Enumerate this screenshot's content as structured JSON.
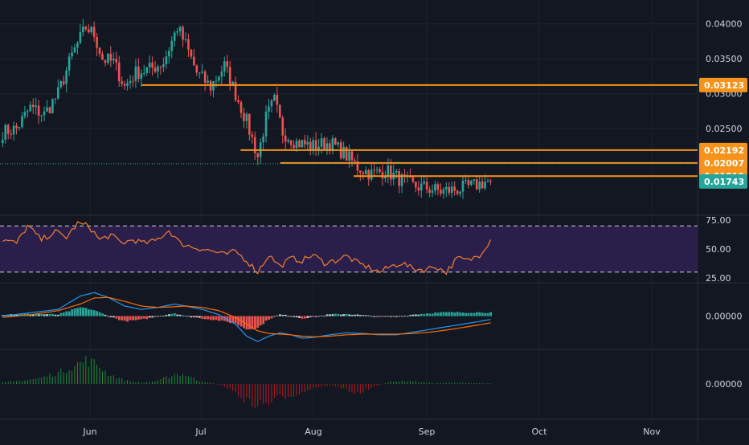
{
  "colors": {
    "background": "#131722",
    "grid": "#1e222d",
    "pane_divider": "#2a2e39",
    "axis_text": "#d1d4dc",
    "up": "#26a69a",
    "down": "#ef5350",
    "level_line": "#f7931a",
    "price_badge": "#26a69a",
    "rsi_line": "#f57f30",
    "rsi_band": "#2a1f4a",
    "macd_line": "#2196f3",
    "signal_line": "#ff6d00",
    "hist_up": "#26a69a",
    "hist_down": "#ef5350",
    "osc_up": "#1e8c3a",
    "osc_down": "#b71c1c"
  },
  "chart_data": [
    {
      "type": "candlestick",
      "pane": "price",
      "x_axis_labels": [
        "Jun",
        "Jul",
        "Aug",
        "Sep",
        "Oct",
        "Nov"
      ],
      "y_ticks": [
        "0.04000",
        "0.03500",
        "0.03000",
        "0.02500"
      ],
      "ylim": [
        0.0135,
        0.0425
      ],
      "current_price": "0.01743",
      "horizontal_levels": [
        {
          "value": 0.03123,
          "label": "0.03123",
          "from_x": 0.203
        },
        {
          "value": 0.02192,
          "label": "0.02192",
          "from_x": 0.345
        },
        {
          "value": 0.02007,
          "label": "0.02007",
          "from_x": 0.402
        },
        {
          "value": 0.01819,
          "label": "0.01819",
          "from_x": 0.507
        }
      ],
      "anchors": [
        [
          0,
          0.0245
        ],
        [
          5,
          0.025
        ],
        [
          10,
          0.028
        ],
        [
          15,
          0.027
        ],
        [
          20,
          0.03
        ],
        [
          25,
          0.0355
        ],
        [
          30,
          0.0395
        ],
        [
          33,
          0.0385
        ],
        [
          36,
          0.035
        ],
        [
          40,
          0.0345
        ],
        [
          44,
          0.031
        ],
        [
          48,
          0.033
        ],
        [
          53,
          0.0335
        ],
        [
          58,
          0.0345
        ],
        [
          63,
          0.0395
        ],
        [
          66,
          0.037
        ],
        [
          70,
          0.033
        ],
        [
          75,
          0.031
        ],
        [
          80,
          0.034
        ],
        [
          84,
          0.03
        ],
        [
          88,
          0.026
        ],
        [
          92,
          0.021
        ],
        [
          95,
          0.0265
        ],
        [
          98,
          0.029
        ],
        [
          101,
          0.0245
        ],
        [
          106,
          0.023
        ],
        [
          112,
          0.0225
        ],
        [
          118,
          0.023
        ],
        [
          123,
          0.0215
        ],
        [
          128,
          0.0195
        ],
        [
          133,
          0.0185
        ],
        [
          138,
          0.019
        ],
        [
          143,
          0.0178
        ],
        [
          148,
          0.0168
        ],
        [
          153,
          0.0165
        ],
        [
          158,
          0.016
        ],
        [
          164,
          0.0163
        ],
        [
          170,
          0.0168
        ],
        [
          174,
          0.0174
        ],
        [
          176,
          0.01743
        ]
      ]
    },
    {
      "type": "line",
      "pane": "rsi",
      "y_ticks": [
        "75.00",
        "50.00",
        "25.00"
      ],
      "ylim": [
        25,
        75
      ],
      "upper_band": 70,
      "lower_band": 30,
      "anchors": [
        [
          0,
          58
        ],
        [
          5,
          55
        ],
        [
          9,
          70
        ],
        [
          14,
          58
        ],
        [
          19,
          65
        ],
        [
          23,
          60
        ],
        [
          27,
          72
        ],
        [
          31,
          70
        ],
        [
          35,
          58
        ],
        [
          39,
          62
        ],
        [
          43,
          55
        ],
        [
          47,
          58
        ],
        [
          51,
          55
        ],
        [
          55,
          57
        ],
        [
          60,
          66
        ],
        [
          64,
          55
        ],
        [
          68,
          52
        ],
        [
          72,
          50
        ],
        [
          76,
          48
        ],
        [
          80,
          45
        ],
        [
          84,
          48
        ],
        [
          88,
          40
        ],
        [
          92,
          30
        ],
        [
          96,
          45
        ],
        [
          100,
          35
        ],
        [
          104,
          42
        ],
        [
          108,
          40
        ],
        [
          112,
          45
        ],
        [
          116,
          38
        ],
        [
          120,
          40
        ],
        [
          124,
          44
        ],
        [
          128,
          38
        ],
        [
          132,
          34
        ],
        [
          136,
          30
        ],
        [
          140,
          35
        ],
        [
          144,
          38
        ],
        [
          148,
          33
        ],
        [
          152,
          32
        ],
        [
          156,
          35
        ],
        [
          160,
          30
        ],
        [
          164,
          42
        ],
        [
          168,
          40
        ],
        [
          172,
          45
        ],
        [
          176,
          58
        ]
      ]
    },
    {
      "type": "line",
      "pane": "macd",
      "y_ticks": [
        "0.00000"
      ],
      "series": [
        {
          "role": "macd",
          "anchors": [
            [
              0,
              0.0
            ],
            [
              10,
              0.05
            ],
            [
              20,
              0.1
            ],
            [
              28,
              0.3
            ],
            [
              33,
              0.35
            ],
            [
              38,
              0.28
            ],
            [
              44,
              0.15
            ],
            [
              50,
              0.1
            ],
            [
              56,
              0.13
            ],
            [
              62,
              0.18
            ],
            [
              66,
              0.15
            ],
            [
              72,
              0.1
            ],
            [
              78,
              0.02
            ],
            [
              84,
              -0.12
            ],
            [
              88,
              -0.3
            ],
            [
              92,
              -0.38
            ],
            [
              96,
              -0.3
            ],
            [
              100,
              -0.25
            ],
            [
              104,
              -0.28
            ],
            [
              108,
              -0.33
            ],
            [
              112,
              -0.32
            ],
            [
              118,
              -0.28
            ],
            [
              124,
              -0.25
            ],
            [
              130,
              -0.26
            ],
            [
              136,
              -0.28
            ],
            [
              142,
              -0.28
            ],
            [
              148,
              -0.24
            ],
            [
              154,
              -0.2
            ],
            [
              160,
              -0.16
            ],
            [
              166,
              -0.12
            ],
            [
              172,
              -0.08
            ],
            [
              176,
              -0.05
            ]
          ]
        },
        {
          "role": "signal",
          "anchors": [
            [
              0,
              -0.02
            ],
            [
              10,
              0.02
            ],
            [
              20,
              0.08
            ],
            [
              28,
              0.18
            ],
            [
              33,
              0.27
            ],
            [
              38,
              0.28
            ],
            [
              44,
              0.22
            ],
            [
              50,
              0.15
            ],
            [
              56,
              0.13
            ],
            [
              62,
              0.14
            ],
            [
              66,
              0.15
            ],
            [
              72,
              0.13
            ],
            [
              78,
              0.08
            ],
            [
              84,
              -0.02
            ],
            [
              88,
              -0.12
            ],
            [
              92,
              -0.22
            ],
            [
              96,
              -0.26
            ],
            [
              100,
              -0.27
            ],
            [
              104,
              -0.28
            ],
            [
              108,
              -0.3
            ],
            [
              112,
              -0.31
            ],
            [
              118,
              -0.3
            ],
            [
              124,
              -0.28
            ],
            [
              130,
              -0.27
            ],
            [
              136,
              -0.27
            ],
            [
              142,
              -0.27
            ],
            [
              148,
              -0.26
            ],
            [
              154,
              -0.24
            ],
            [
              160,
              -0.21
            ],
            [
              166,
              -0.17
            ],
            [
              172,
              -0.13
            ],
            [
              176,
              -0.1
            ]
          ]
        }
      ],
      "ylim": [
        -0.45,
        0.45
      ]
    },
    {
      "type": "bar",
      "pane": "oscillator",
      "y_ticks": [
        "0.00000"
      ],
      "ylim": [
        -1.2,
        1.2
      ],
      "anchors": [
        [
          0,
          0.05
        ],
        [
          8,
          0.15
        ],
        [
          14,
          0.25
        ],
        [
          20,
          0.45
        ],
        [
          26,
          0.75
        ],
        [
          30,
          0.95
        ],
        [
          34,
          0.8
        ],
        [
          38,
          0.4
        ],
        [
          44,
          0.15
        ],
        [
          50,
          0.05
        ],
        [
          56,
          0.12
        ],
        [
          62,
          0.4
        ],
        [
          66,
          0.38
        ],
        [
          70,
          0.15
        ],
        [
          76,
          0.02
        ],
        [
          80,
          -0.1
        ],
        [
          84,
          -0.35
        ],
        [
          88,
          -0.7
        ],
        [
          92,
          -0.85
        ],
        [
          96,
          -0.75
        ],
        [
          100,
          -0.55
        ],
        [
          104,
          -0.45
        ],
        [
          108,
          -0.35
        ],
        [
          112,
          -0.15
        ],
        [
          118,
          -0.05
        ],
        [
          124,
          -0.22
        ],
        [
          128,
          -0.4
        ],
        [
          132,
          -0.2
        ],
        [
          136,
          -0.05
        ],
        [
          140,
          0.1
        ],
        [
          146,
          0.12
        ],
        [
          150,
          0.08
        ],
        [
          156,
          0.02
        ],
        [
          162,
          0.05
        ],
        [
          168,
          0.04
        ],
        [
          176,
          0.02
        ]
      ]
    }
  ]
}
